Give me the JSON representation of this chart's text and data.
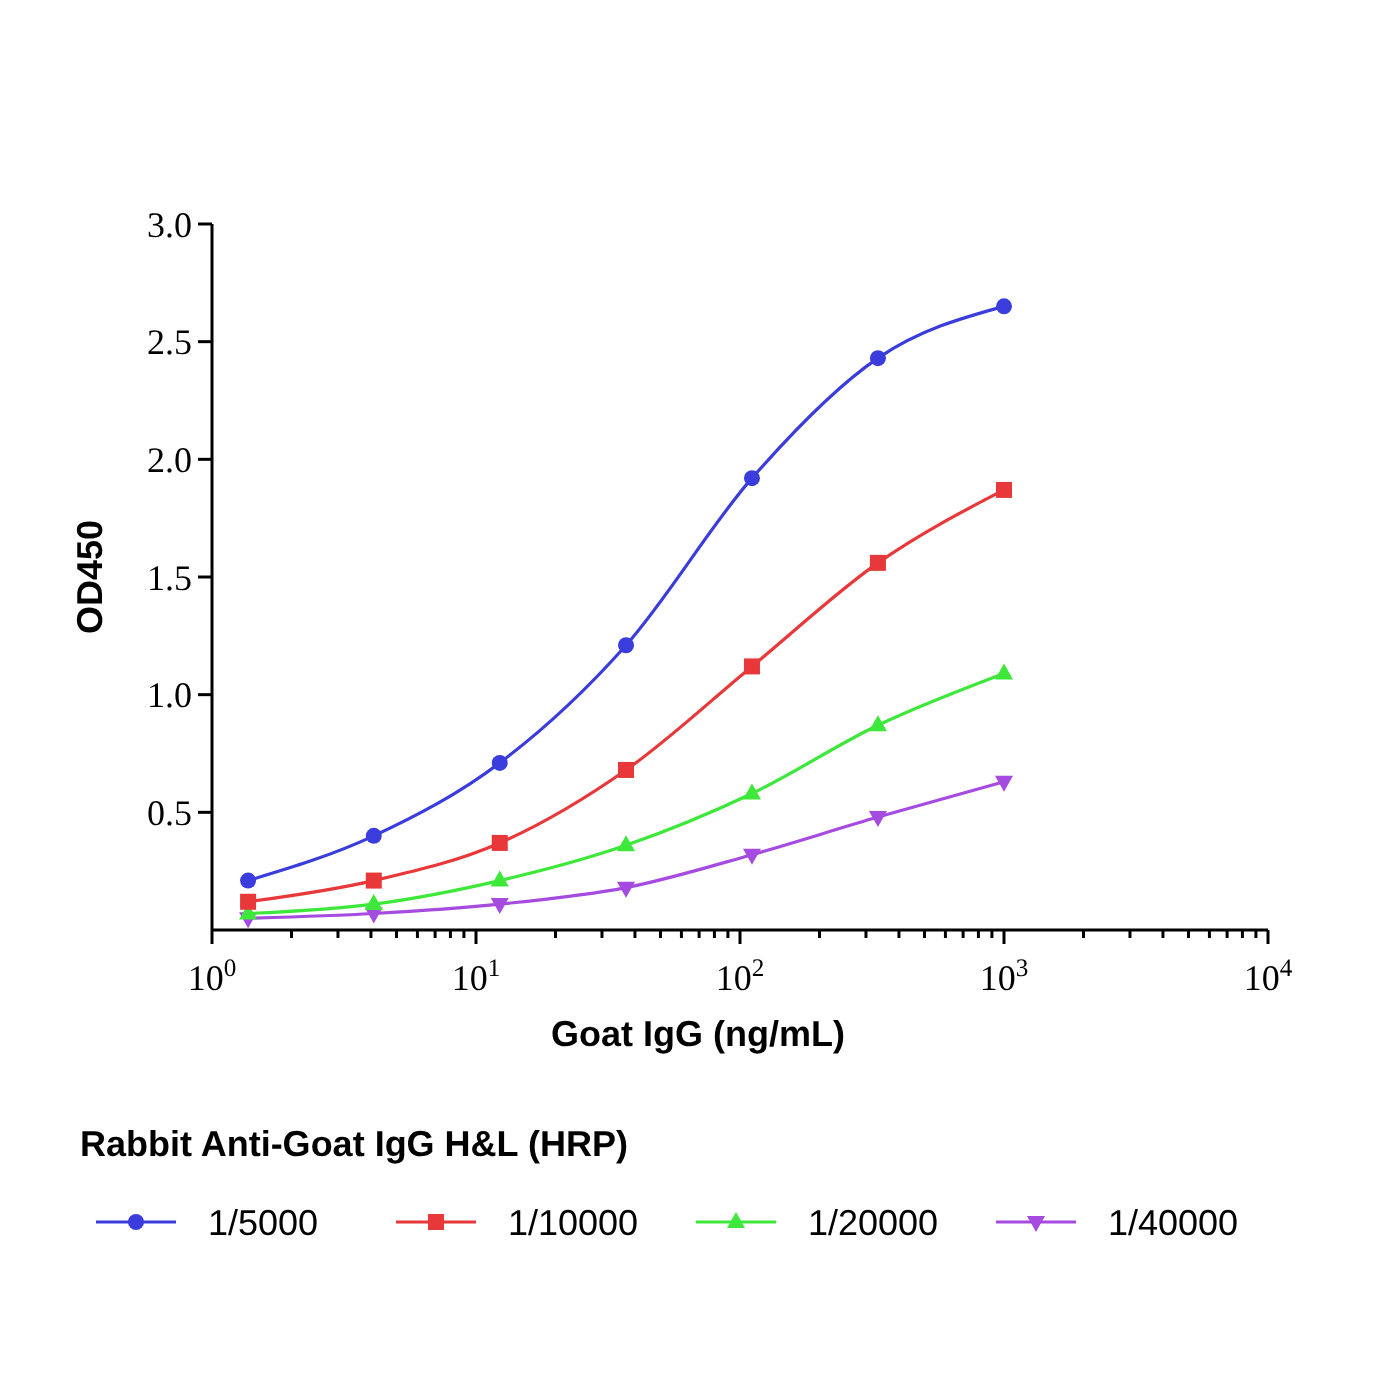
{
  "chart_data": {
    "type": "line",
    "xlabel": "Goat IgG (ng/mL)",
    "ylabel": "OD450",
    "legend_title": "Rabbit Anti-Goat IgG H&L (HRP)",
    "log": "x",
    "legend": "bottom",
    "x": [
      1.37,
      4.1,
      12.3,
      37,
      111,
      333,
      1000
    ],
    "xlim": [
      1,
      10000
    ],
    "xticks": [
      {
        "value": 1,
        "label": "10$^{0}$"
      },
      {
        "value": 2,
        "label": null
      },
      {
        "value": 3,
        "label": null
      },
      {
        "value": 4,
        "label": null
      },
      {
        "value": 5,
        "label": null
      },
      {
        "value": 6,
        "label": null
      },
      {
        "value": 7,
        "label": null
      },
      {
        "value": 8,
        "label": null
      },
      {
        "value": 9,
        "label": null
      },
      {
        "value": 10,
        "label": "10$^{1}$"
      },
      {
        "value": 20,
        "label": null
      },
      {
        "value": 30,
        "label": null
      },
      {
        "value": 40,
        "label": null
      },
      {
        "value": 50,
        "label": null
      },
      {
        "value": 60,
        "label": null
      },
      {
        "value": 70,
        "label": null
      },
      {
        "value": 80,
        "label": null
      },
      {
        "value": 90,
        "label": null
      },
      {
        "value": 100,
        "label": "10$^{2}$"
      },
      {
        "value": 200,
        "label": null
      },
      {
        "value": 300,
        "label": null
      },
      {
        "value": 400,
        "label": null
      },
      {
        "value": 500,
        "label": null
      },
      {
        "value": 600,
        "label": null
      },
      {
        "value": 700,
        "label": null
      },
      {
        "value": 800,
        "label": null
      },
      {
        "value": 900,
        "label": null
      },
      {
        "value": 1000,
        "label": "10$^{3}$"
      },
      {
        "value": 2000,
        "label": null
      },
      {
        "value": 3000,
        "label": null
      },
      {
        "value": 4000,
        "label": null
      },
      {
        "value": 5000,
        "label": null
      },
      {
        "value": 6000,
        "label": null
      },
      {
        "value": 7000,
        "label": null
      },
      {
        "value": 8000,
        "label": null
      },
      {
        "value": 9000,
        "label": null
      },
      {
        "value": 10000,
        "label": "10$^{4}$"
      }
    ],
    "ylim": [
      0,
      3
    ],
    "yticks": [
      {
        "value": 0.5,
        "label": "0.5"
      },
      {
        "value": 1,
        "label": "1.0"
      },
      {
        "value": 1.5,
        "label": "1.5"
      },
      {
        "value": 2,
        "label": "2.0"
      },
      {
        "value": 2.5,
        "label": "2.5"
      },
      {
        "value": 3,
        "label": "3.0"
      }
    ],
    "grid": false,
    "series": [
      {
        "name": "1/5000",
        "color": "#3a3ddb",
        "marker": "circle",
        "values": [
          0.21,
          0.4,
          0.71,
          1.21,
          1.92,
          2.43,
          2.65
        ]
      },
      {
        "name": "1/10000",
        "color": "#e8383a",
        "marker": "square",
        "values": [
          0.12,
          0.21,
          0.37,
          0.68,
          1.12,
          1.56,
          1.87
        ]
      },
      {
        "name": "1/20000",
        "color": "#3ee83a",
        "marker": "triangle",
        "values": [
          0.07,
          0.11,
          0.21,
          0.36,
          0.58,
          0.87,
          1.09
        ]
      },
      {
        "name": "1/40000",
        "color": "#a64be0",
        "marker": "triangle-down",
        "values": [
          0.05,
          0.07,
          0.11,
          0.18,
          0.32,
          0.48,
          0.63
        ]
      }
    ]
  }
}
